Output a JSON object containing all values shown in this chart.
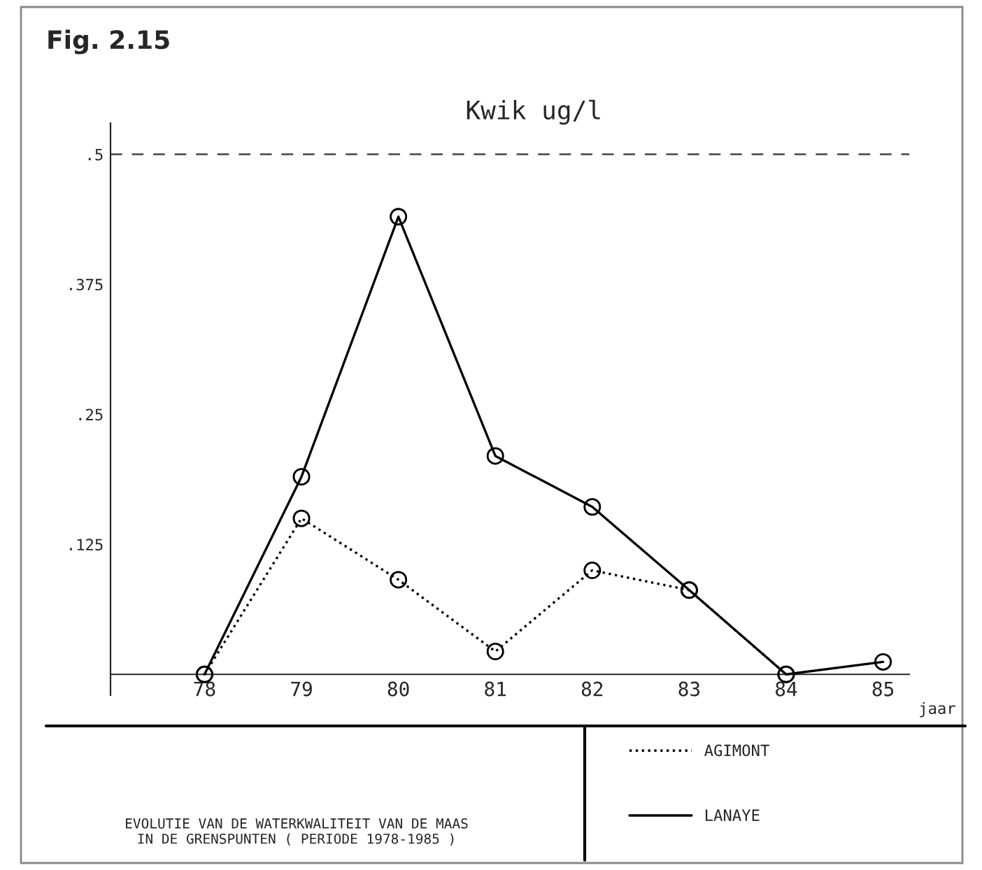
{
  "chart_data": {
    "type": "line",
    "title": "Kwik ug/l",
    "xlabel": "jaar",
    "categories": [
      "78",
      "79",
      "80",
      "81",
      "82",
      "83",
      "84",
      "85"
    ],
    "series": [
      {
        "name": "AGIMONT",
        "color": "#000000",
        "line_style": "dotted",
        "values": [
          0,
          0.15,
          0.091,
          0.022,
          0.1,
          0.081,
          0,
          null
        ]
      },
      {
        "name": "LANAYE",
        "color": "#000000",
        "line_style": "solid",
        "values": [
          0,
          0.19,
          0.44,
          0.21,
          0.161,
          0.081,
          0,
          0.012
        ]
      }
    ],
    "ylim": [
      -0.02,
      0.53
    ],
    "yticks": [
      {
        "value": 0.125,
        "label": ".125"
      },
      {
        "value": 0.25,
        "label": ".25"
      },
      {
        "value": 0.375,
        "label": ".375"
      },
      {
        "value": 0.5,
        "label": ".5"
      }
    ],
    "ref_lines": [
      {
        "axis": "y",
        "value": 0.5,
        "color": "#555555",
        "line_style": "dashed"
      }
    ],
    "marker": "circle",
    "grid": false,
    "legend": "bottom right",
    "annotations": [
      "Fig. 2.15",
      "EVOLUTIE VAN DE WATERKWALITEIT VAN DE MAAS\nIN DE GRENSPUNTEN ( PERIODE 1978-1985 )"
    ]
  }
}
